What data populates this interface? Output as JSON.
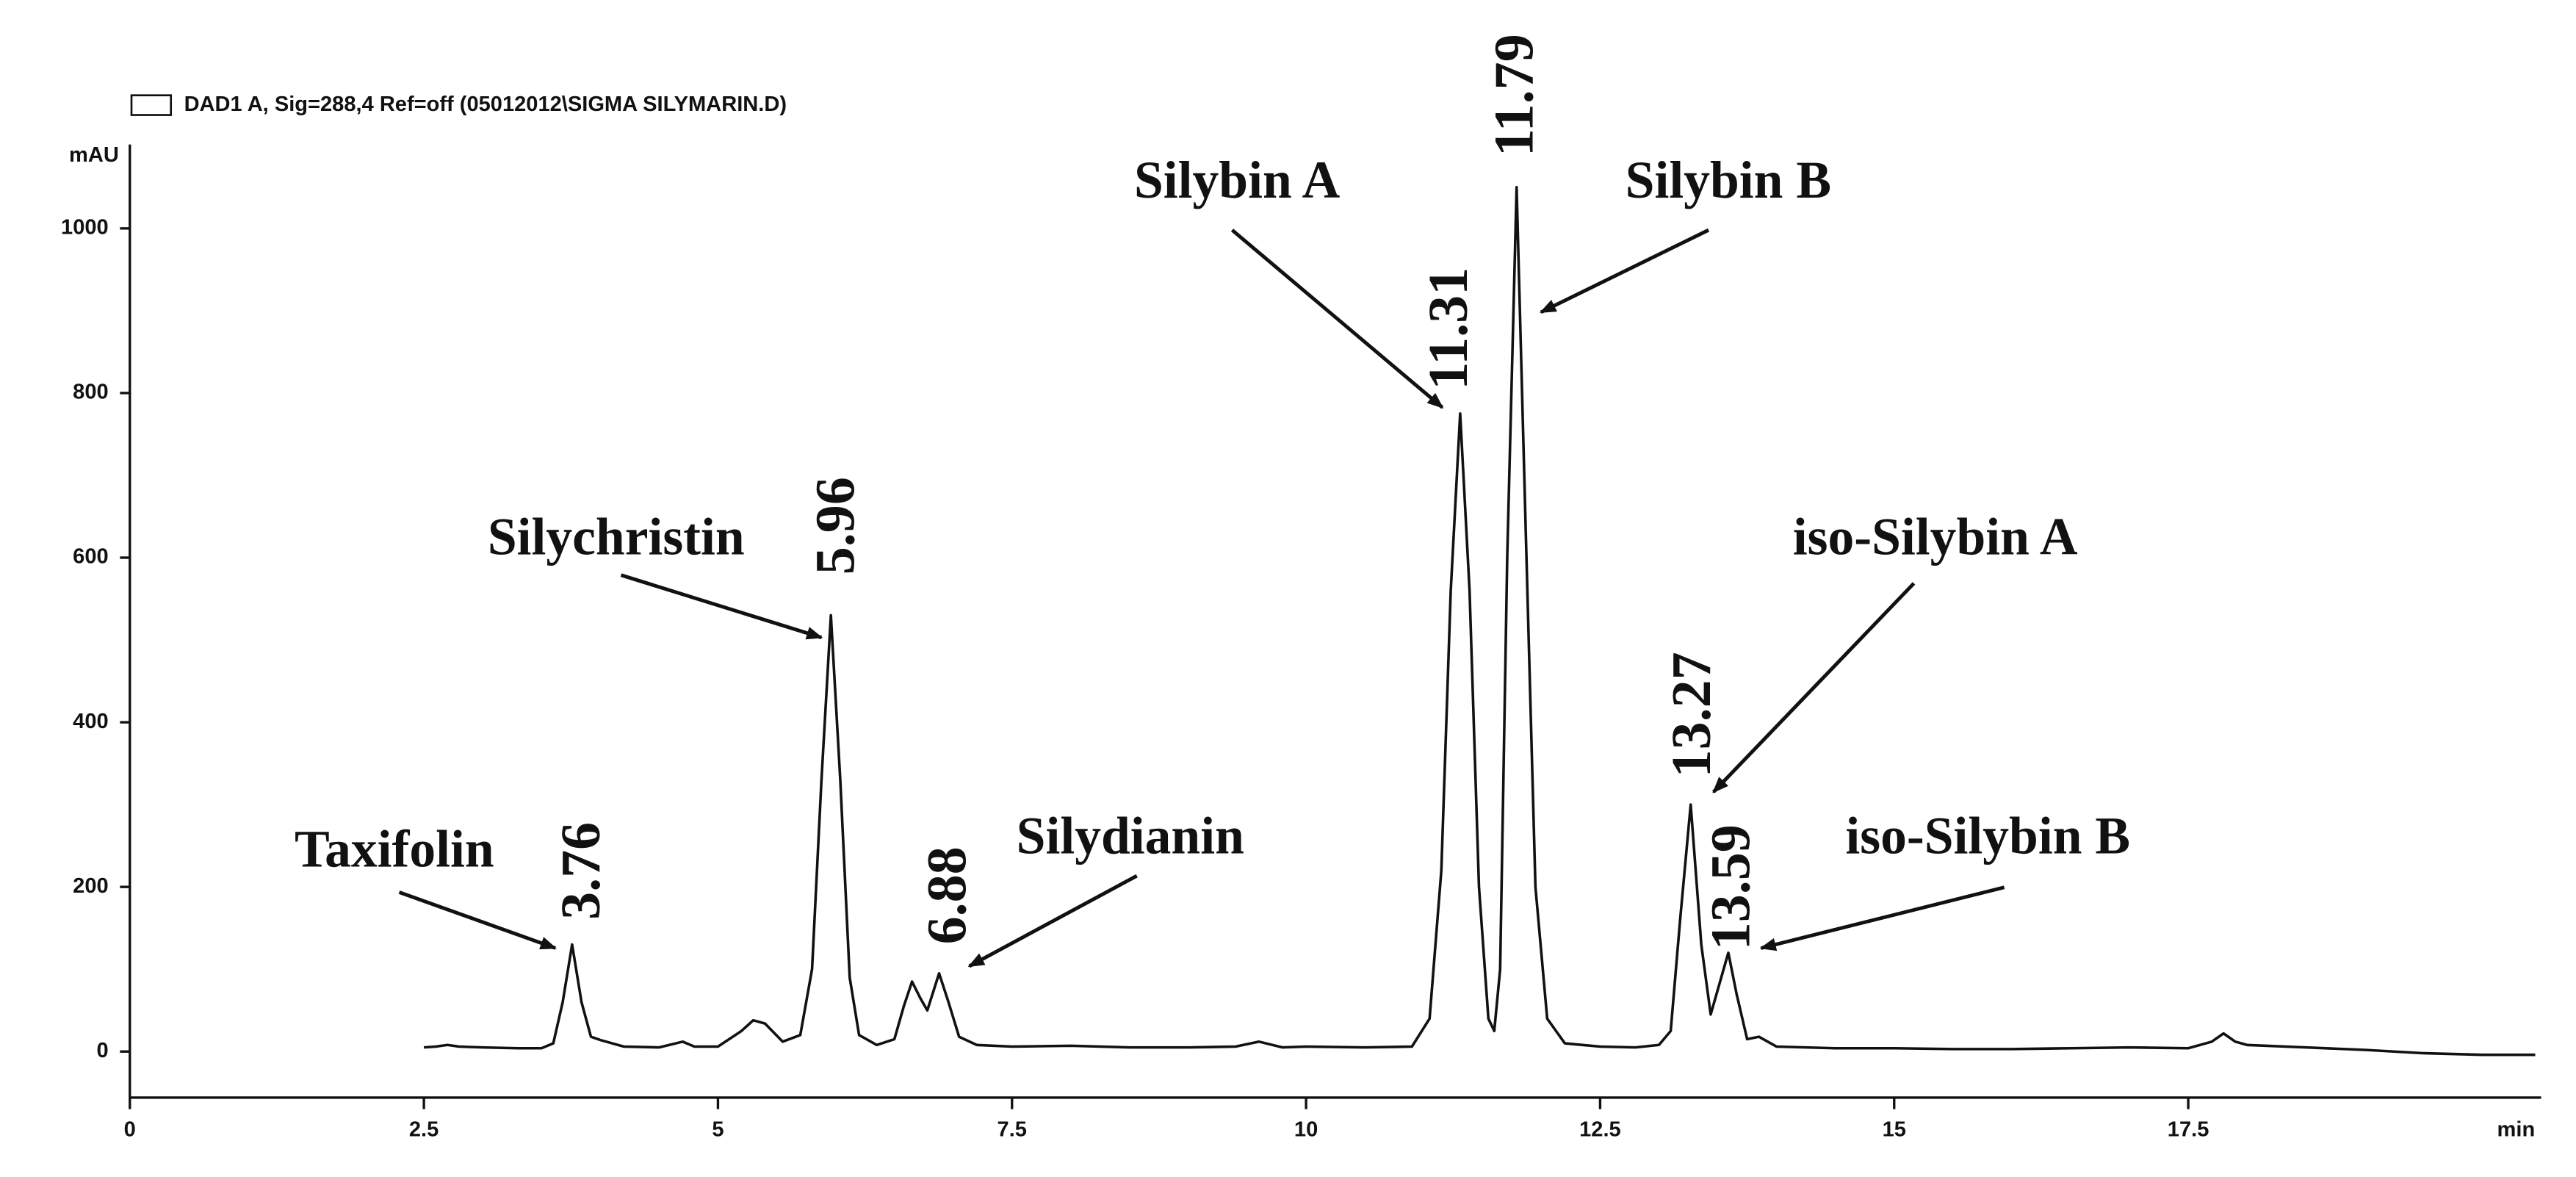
{
  "chart_data": {
    "type": "line",
    "legend_label": "DAD1 A, Sig=288,4 Ref=off (05012012\\SIGMA SILYMARIN.D)",
    "y_label": "mAU",
    "x_label": "min",
    "xlim": [
      0,
      20.5
    ],
    "ylim": [
      -56,
      1102
    ],
    "xticks": [
      0,
      2.5,
      5,
      7.5,
      10,
      12.5,
      15,
      17.5
    ],
    "yticks": [
      0,
      200,
      400,
      600,
      800,
      1000
    ],
    "grid": false,
    "x": [
      2.5,
      2.6,
      2.7,
      2.8,
      3.0,
      3.3,
      3.5,
      3.6,
      3.68,
      3.76,
      3.84,
      3.92,
      4.0,
      4.2,
      4.5,
      4.7,
      4.8,
      5.0,
      5.2,
      5.3,
      5.4,
      5.55,
      5.7,
      5.8,
      5.88,
      5.96,
      6.04,
      6.12,
      6.2,
      6.35,
      6.5,
      6.58,
      6.65,
      6.72,
      6.78,
      6.88,
      6.96,
      7.05,
      7.2,
      7.5,
      8.0,
      8.5,
      9.0,
      9.4,
      9.6,
      9.8,
      10.0,
      10.5,
      10.9,
      11.05,
      11.15,
      11.23,
      11.31,
      11.39,
      11.47,
      11.55,
      11.6,
      11.65,
      11.71,
      11.79,
      11.87,
      11.95,
      12.05,
      12.2,
      12.5,
      12.8,
      13.0,
      13.1,
      13.18,
      13.27,
      13.36,
      13.44,
      13.52,
      13.59,
      13.66,
      13.75,
      13.85,
      14.0,
      14.5,
      15.0,
      15.5,
      16.0,
      16.5,
      17.0,
      17.5,
      17.7,
      17.8,
      17.9,
      18.0,
      18.5,
      19.0,
      19.5,
      20.0,
      20.45
    ],
    "series": [
      {
        "name": "DAD1 A",
        "color": "#111111",
        "values": [
          5,
          6,
          8,
          6,
          5,
          4,
          4,
          10,
          60,
          130,
          60,
          18,
          14,
          6,
          5,
          12,
          6,
          6,
          25,
          38,
          34,
          12,
          20,
          100,
          330,
          530,
          330,
          90,
          20,
          8,
          15,
          55,
          85,
          65,
          50,
          95,
          60,
          18,
          8,
          6,
          7,
          5,
          5,
          6,
          12,
          5,
          6,
          5,
          6,
          40,
          220,
          560,
          775,
          560,
          200,
          40,
          25,
          100,
          600,
          1050,
          620,
          200,
          40,
          10,
          6,
          5,
          8,
          25,
          160,
          300,
          130,
          45,
          85,
          120,
          70,
          15,
          18,
          6,
          4,
          4,
          3,
          3,
          4,
          5,
          4,
          12,
          22,
          12,
          8,
          5,
          2,
          -2,
          -4,
          -4
        ]
      }
    ],
    "annotations": [
      {
        "peak": "3.76",
        "compound": "Taxifolin"
      },
      {
        "peak": "5.96",
        "compound": "Silychristin"
      },
      {
        "peak": "6.88",
        "compound": "Silydianin"
      },
      {
        "peak": "11.31",
        "compound": "Silybin A"
      },
      {
        "peak": "11.79",
        "compound": "Silybin B"
      },
      {
        "peak": "13.27",
        "compound": "iso-Silybin A"
      },
      {
        "peak": "13.59",
        "compound": "iso-Silybin B"
      }
    ]
  }
}
